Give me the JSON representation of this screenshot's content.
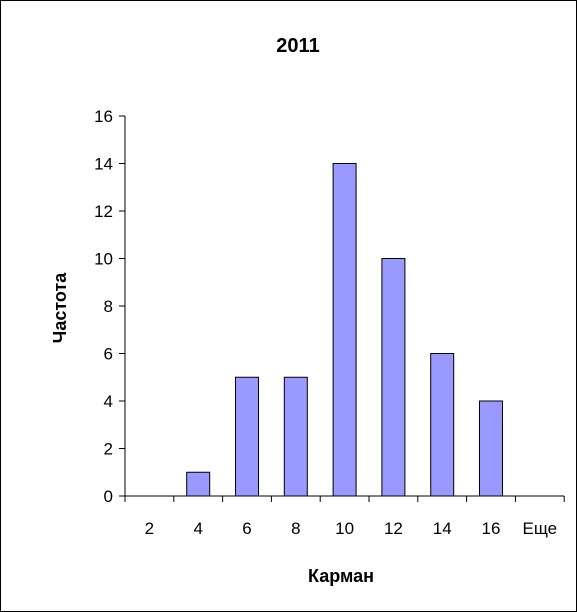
{
  "chart_data": {
    "type": "bar",
    "title": "2011",
    "xlabel": "Карман",
    "ylabel": "Частота",
    "categories": [
      "2",
      "4",
      "6",
      "8",
      "10",
      "12",
      "14",
      "16",
      "Еще"
    ],
    "values": [
      0,
      1,
      5,
      5,
      14,
      10,
      6,
      4,
      0
    ],
    "ylim": [
      0,
      16
    ],
    "yticks": [
      "0",
      "2",
      "4",
      "6",
      "8",
      "10",
      "12",
      "14",
      "16"
    ],
    "grid": false,
    "legend": "none",
    "bar_color": "#9999ff",
    "bar_stroke": "#000000"
  }
}
